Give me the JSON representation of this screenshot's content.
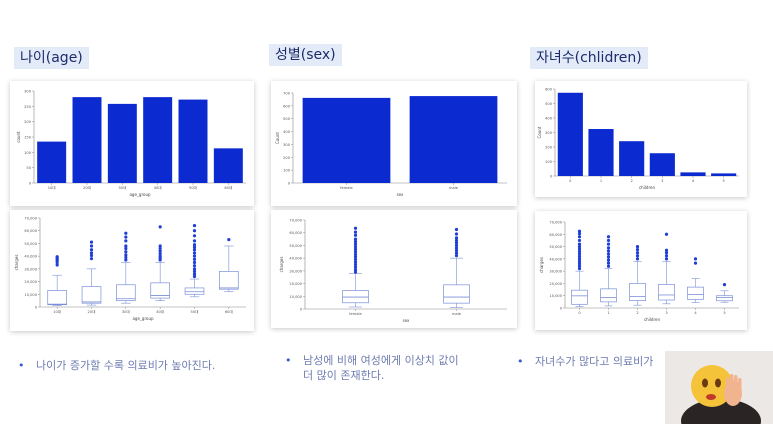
{
  "sections": [
    {
      "title": "나이(age)"
    },
    {
      "title": "성별(sex)"
    },
    {
      "title": "자녀수(chlidren)"
    }
  ],
  "notes": [
    {
      "text": "나이가 증가할 수록 의료비가 높아진다."
    },
    {
      "text": "남성에 비해 여성에게 이상치 값이\n더 많이 존재한다."
    },
    {
      "text": "자녀수가 많다고 의료비가"
    }
  ],
  "colors": {
    "bar": "#0b2bd1",
    "box": "#7b8fd8",
    "outlier": "#1f3fd6",
    "heading_bg": "#e3ebf8"
  },
  "chart_data": [
    {
      "type": "bar",
      "categories": [
        "10대",
        "20대",
        "30대",
        "40대",
        "50대",
        "60대"
      ],
      "values": [
        135,
        280,
        258,
        280,
        272,
        113
      ],
      "xlabel": "age_group",
      "ylabel": "count",
      "ylim": [
        0,
        300
      ],
      "yticks": [
        "0",
        "50",
        "100",
        "150",
        "200",
        "250",
        "300"
      ]
    },
    {
      "type": "bar",
      "categories": [
        "female",
        "male"
      ],
      "values": [
        662,
        676
      ],
      "xlabel": "sex",
      "ylabel": "Count",
      "ylim": [
        0,
        700
      ],
      "yticks": [
        "0",
        "100",
        "200",
        "300",
        "400",
        "500",
        "600",
        "700"
      ]
    },
    {
      "type": "bar",
      "categories": [
        "0",
        "1",
        "2",
        "3",
        "4",
        "5"
      ],
      "values": [
        574,
        324,
        240,
        157,
        25,
        18
      ],
      "xlabel": "children",
      "ylabel": "Count",
      "ylim": [
        0,
        600
      ],
      "yticks": [
        "0",
        "100",
        "200",
        "300",
        "400",
        "500",
        "600"
      ]
    },
    {
      "type": "box",
      "categories": [
        "10대",
        "20대",
        "30대",
        "40대",
        "50대",
        "60대"
      ],
      "xlabel": "age_group",
      "ylabel": "charges",
      "ylim": [
        0,
        70000
      ],
      "yticks": [
        "0",
        "10,000",
        "20,000",
        "30,000",
        "40,000",
        "50,000",
        "60,000",
        "70,000"
      ],
      "boxes": [
        {
          "whislo": 1100,
          "q1": 1800,
          "med": 2200,
          "q3": 13000,
          "whishi": 25000,
          "fliers": [
            33000,
            35000,
            36500,
            37500,
            38500,
            39500
          ]
        },
        {
          "whislo": 1500,
          "q1": 3000,
          "med": 4000,
          "q3": 16000,
          "whishi": 30000,
          "fliers": [
            38000,
            40500,
            42500,
            45000,
            48000,
            51000
          ]
        },
        {
          "whislo": 3000,
          "q1": 5000,
          "med": 6500,
          "q3": 17500,
          "whishi": 35000,
          "fliers": [
            37000,
            39000,
            41000,
            43500,
            46000,
            48000,
            52000,
            55000,
            58000
          ]
        },
        {
          "whislo": 5000,
          "q1": 7000,
          "med": 9000,
          "q3": 19000,
          "whishi": 35000,
          "fliers": [
            37000,
            38500,
            40000,
            42000,
            44000,
            46000,
            48000,
            63000
          ]
        },
        {
          "whislo": 8000,
          "q1": 10000,
          "med": 12000,
          "q3": 15000,
          "whishi": 22000,
          "fliers": [
            24000,
            26000,
            28000,
            30000,
            32500,
            35000,
            37500,
            40000,
            42500,
            45000,
            47000,
            49000,
            52000,
            56000,
            60000,
            64000
          ]
        },
        {
          "whislo": 12000,
          "q1": 14000,
          "med": 15000,
          "q3": 28000,
          "whishi": 48000,
          "fliers": [
            53000
          ]
        }
      ]
    },
    {
      "type": "box",
      "categories": [
        "female",
        "male"
      ],
      "xlabel": "sex",
      "ylabel": "charges",
      "ylim": [
        0,
        70000
      ],
      "yticks": [
        "0",
        "10,000",
        "20,000",
        "30,000",
        "40,000",
        "50,000",
        "60,000",
        "70,000"
      ],
      "boxes": [
        {
          "whislo": 1600,
          "q1": 4900,
          "med": 9400,
          "q3": 14500,
          "whishi": 28000,
          "fliers": [
            29000,
            31000,
            33000,
            35000,
            37000,
            39000,
            41000,
            43000,
            45000,
            47000,
            49000,
            51000,
            53000,
            55000,
            58000,
            60500,
            63500
          ]
        },
        {
          "whislo": 1100,
          "q1": 4600,
          "med": 9400,
          "q3": 19000,
          "whishi": 40000,
          "fliers": [
            42000,
            44000,
            46000,
            48000,
            50000,
            52000,
            54000,
            56000,
            59000,
            62500
          ]
        }
      ]
    },
    {
      "type": "box",
      "categories": [
        "0",
        "1",
        "2",
        "3",
        "4",
        "5"
      ],
      "xlabel": "children",
      "ylabel": "charges",
      "ylim": [
        0,
        70000
      ],
      "yticks": [
        "0",
        "10,000",
        "20,000",
        "30,000",
        "40,000",
        "50,000",
        "60,000",
        "70,000"
      ],
      "boxes": [
        {
          "whislo": 1100,
          "q1": 3000,
          "med": 9900,
          "q3": 14500,
          "whishi": 30000,
          "fliers": [
            32000,
            34000,
            36000,
            38000,
            40000,
            42000,
            44000,
            46000,
            48000,
            50000,
            52000,
            55000,
            58000,
            60500,
            62500
          ]
        },
        {
          "whislo": 1700,
          "q1": 5000,
          "med": 8500,
          "q3": 15600,
          "whishi": 32000,
          "fliers": [
            34000,
            36500,
            39000,
            41500,
            44000,
            46500,
            49000,
            52000,
            55000,
            58000
          ]
        },
        {
          "whislo": 2300,
          "q1": 6000,
          "med": 9300,
          "q3": 20000,
          "whishi": 38000,
          "fliers": [
            40000,
            42500,
            45000,
            47500,
            50000
          ]
        },
        {
          "whislo": 3400,
          "q1": 6500,
          "med": 10600,
          "q3": 19200,
          "whishi": 38000,
          "fliers": [
            40000,
            42500,
            45000,
            47000,
            60000
          ]
        },
        {
          "whislo": 4500,
          "q1": 7000,
          "med": 11000,
          "q3": 17000,
          "whishi": 24000,
          "fliers": [
            36500,
            40000
          ]
        },
        {
          "whislo": 4700,
          "q1": 5900,
          "med": 8600,
          "q3": 10000,
          "whishi": 14000,
          "fliers": [
            19000
          ]
        }
      ]
    }
  ]
}
